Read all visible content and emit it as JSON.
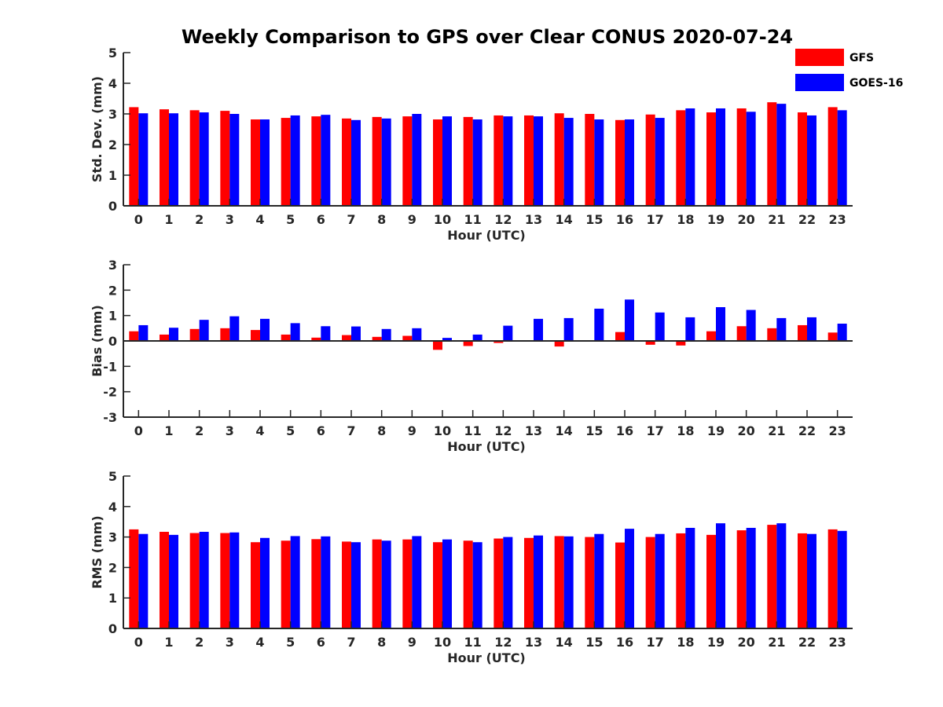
{
  "title": "Weekly Comparison to GPS over Clear CONUS 2020-07-24",
  "colors": {
    "GFS": "#ff0000",
    "GOES-16": "#0000ff",
    "axis": "#262626"
  },
  "legend": {
    "placement": "top-right",
    "items": [
      "GFS",
      "GOES-16"
    ]
  },
  "chart_data": [
    {
      "type": "bar",
      "ylabel": "Std. Dev. (mm)",
      "xlabel": "Hour (UTC)",
      "ylim": [
        0,
        5
      ],
      "yticks": [
        0,
        1,
        2,
        3,
        4,
        5
      ],
      "grid": false,
      "categories": [
        "0",
        "1",
        "2",
        "3",
        "4",
        "5",
        "6",
        "7",
        "8",
        "9",
        "10",
        "11",
        "12",
        "13",
        "14",
        "15",
        "16",
        "17",
        "18",
        "19",
        "20",
        "21",
        "22",
        "23"
      ],
      "series": [
        {
          "name": "GFS",
          "values": [
            3.22,
            3.15,
            3.12,
            3.1,
            2.82,
            2.87,
            2.92,
            2.85,
            2.9,
            2.92,
            2.82,
            2.9,
            2.95,
            2.95,
            3.02,
            3.0,
            2.8,
            2.98,
            3.12,
            3.05,
            3.18,
            3.38,
            3.05,
            3.22
          ]
        },
        {
          "name": "GOES-16",
          "values": [
            3.02,
            3.02,
            3.05,
            3.0,
            2.82,
            2.95,
            2.97,
            2.8,
            2.85,
            3.0,
            2.92,
            2.82,
            2.92,
            2.92,
            2.87,
            2.82,
            2.82,
            2.87,
            3.18,
            3.18,
            3.07,
            3.33,
            2.95,
            3.12
          ]
        }
      ]
    },
    {
      "type": "bar",
      "ylabel": "Bias (mm)",
      "xlabel": "Hour (UTC)",
      "ylim": [
        -3,
        3
      ],
      "yticks": [
        -3,
        -2,
        -1,
        0,
        1,
        2,
        3
      ],
      "grid": false,
      "categories": [
        "0",
        "1",
        "2",
        "3",
        "4",
        "5",
        "6",
        "7",
        "8",
        "9",
        "10",
        "11",
        "12",
        "13",
        "14",
        "15",
        "16",
        "17",
        "18",
        "19",
        "20",
        "21",
        "22",
        "23"
      ],
      "series": [
        {
          "name": "GFS",
          "values": [
            0.38,
            0.25,
            0.47,
            0.5,
            0.43,
            0.25,
            0.13,
            0.23,
            0.16,
            0.2,
            -0.35,
            -0.2,
            -0.08,
            -0.03,
            -0.22,
            0.0,
            0.35,
            -0.15,
            -0.18,
            0.38,
            0.58,
            0.5,
            0.62,
            0.33
          ]
        },
        {
          "name": "GOES-16",
          "values": [
            0.62,
            0.52,
            0.83,
            0.97,
            0.87,
            0.7,
            0.58,
            0.57,
            0.47,
            0.5,
            0.12,
            0.25,
            0.6,
            0.87,
            0.9,
            1.27,
            1.63,
            1.12,
            0.93,
            1.33,
            1.22,
            0.9,
            0.93,
            0.68
          ]
        }
      ]
    },
    {
      "type": "bar",
      "ylabel": "RMS (mm)",
      "xlabel": "Hour (UTC)",
      "ylim": [
        0,
        5
      ],
      "yticks": [
        0,
        1,
        2,
        3,
        4,
        5
      ],
      "grid": false,
      "categories": [
        "0",
        "1",
        "2",
        "3",
        "4",
        "5",
        "6",
        "7",
        "8",
        "9",
        "10",
        "11",
        "12",
        "13",
        "14",
        "15",
        "16",
        "17",
        "18",
        "19",
        "20",
        "21",
        "22",
        "23"
      ],
      "series": [
        {
          "name": "GFS",
          "values": [
            3.25,
            3.17,
            3.13,
            3.13,
            2.83,
            2.88,
            2.93,
            2.85,
            2.92,
            2.92,
            2.83,
            2.88,
            2.95,
            2.97,
            3.03,
            3.0,
            2.82,
            3.0,
            3.12,
            3.07,
            3.22,
            3.4,
            3.12,
            3.25
          ]
        },
        {
          "name": "GOES-16",
          "values": [
            3.1,
            3.07,
            3.17,
            3.15,
            2.97,
            3.03,
            3.02,
            2.83,
            2.88,
            3.03,
            2.92,
            2.83,
            3.0,
            3.05,
            3.02,
            3.1,
            3.27,
            3.1,
            3.3,
            3.45,
            3.3,
            3.45,
            3.1,
            3.2
          ]
        }
      ]
    }
  ]
}
